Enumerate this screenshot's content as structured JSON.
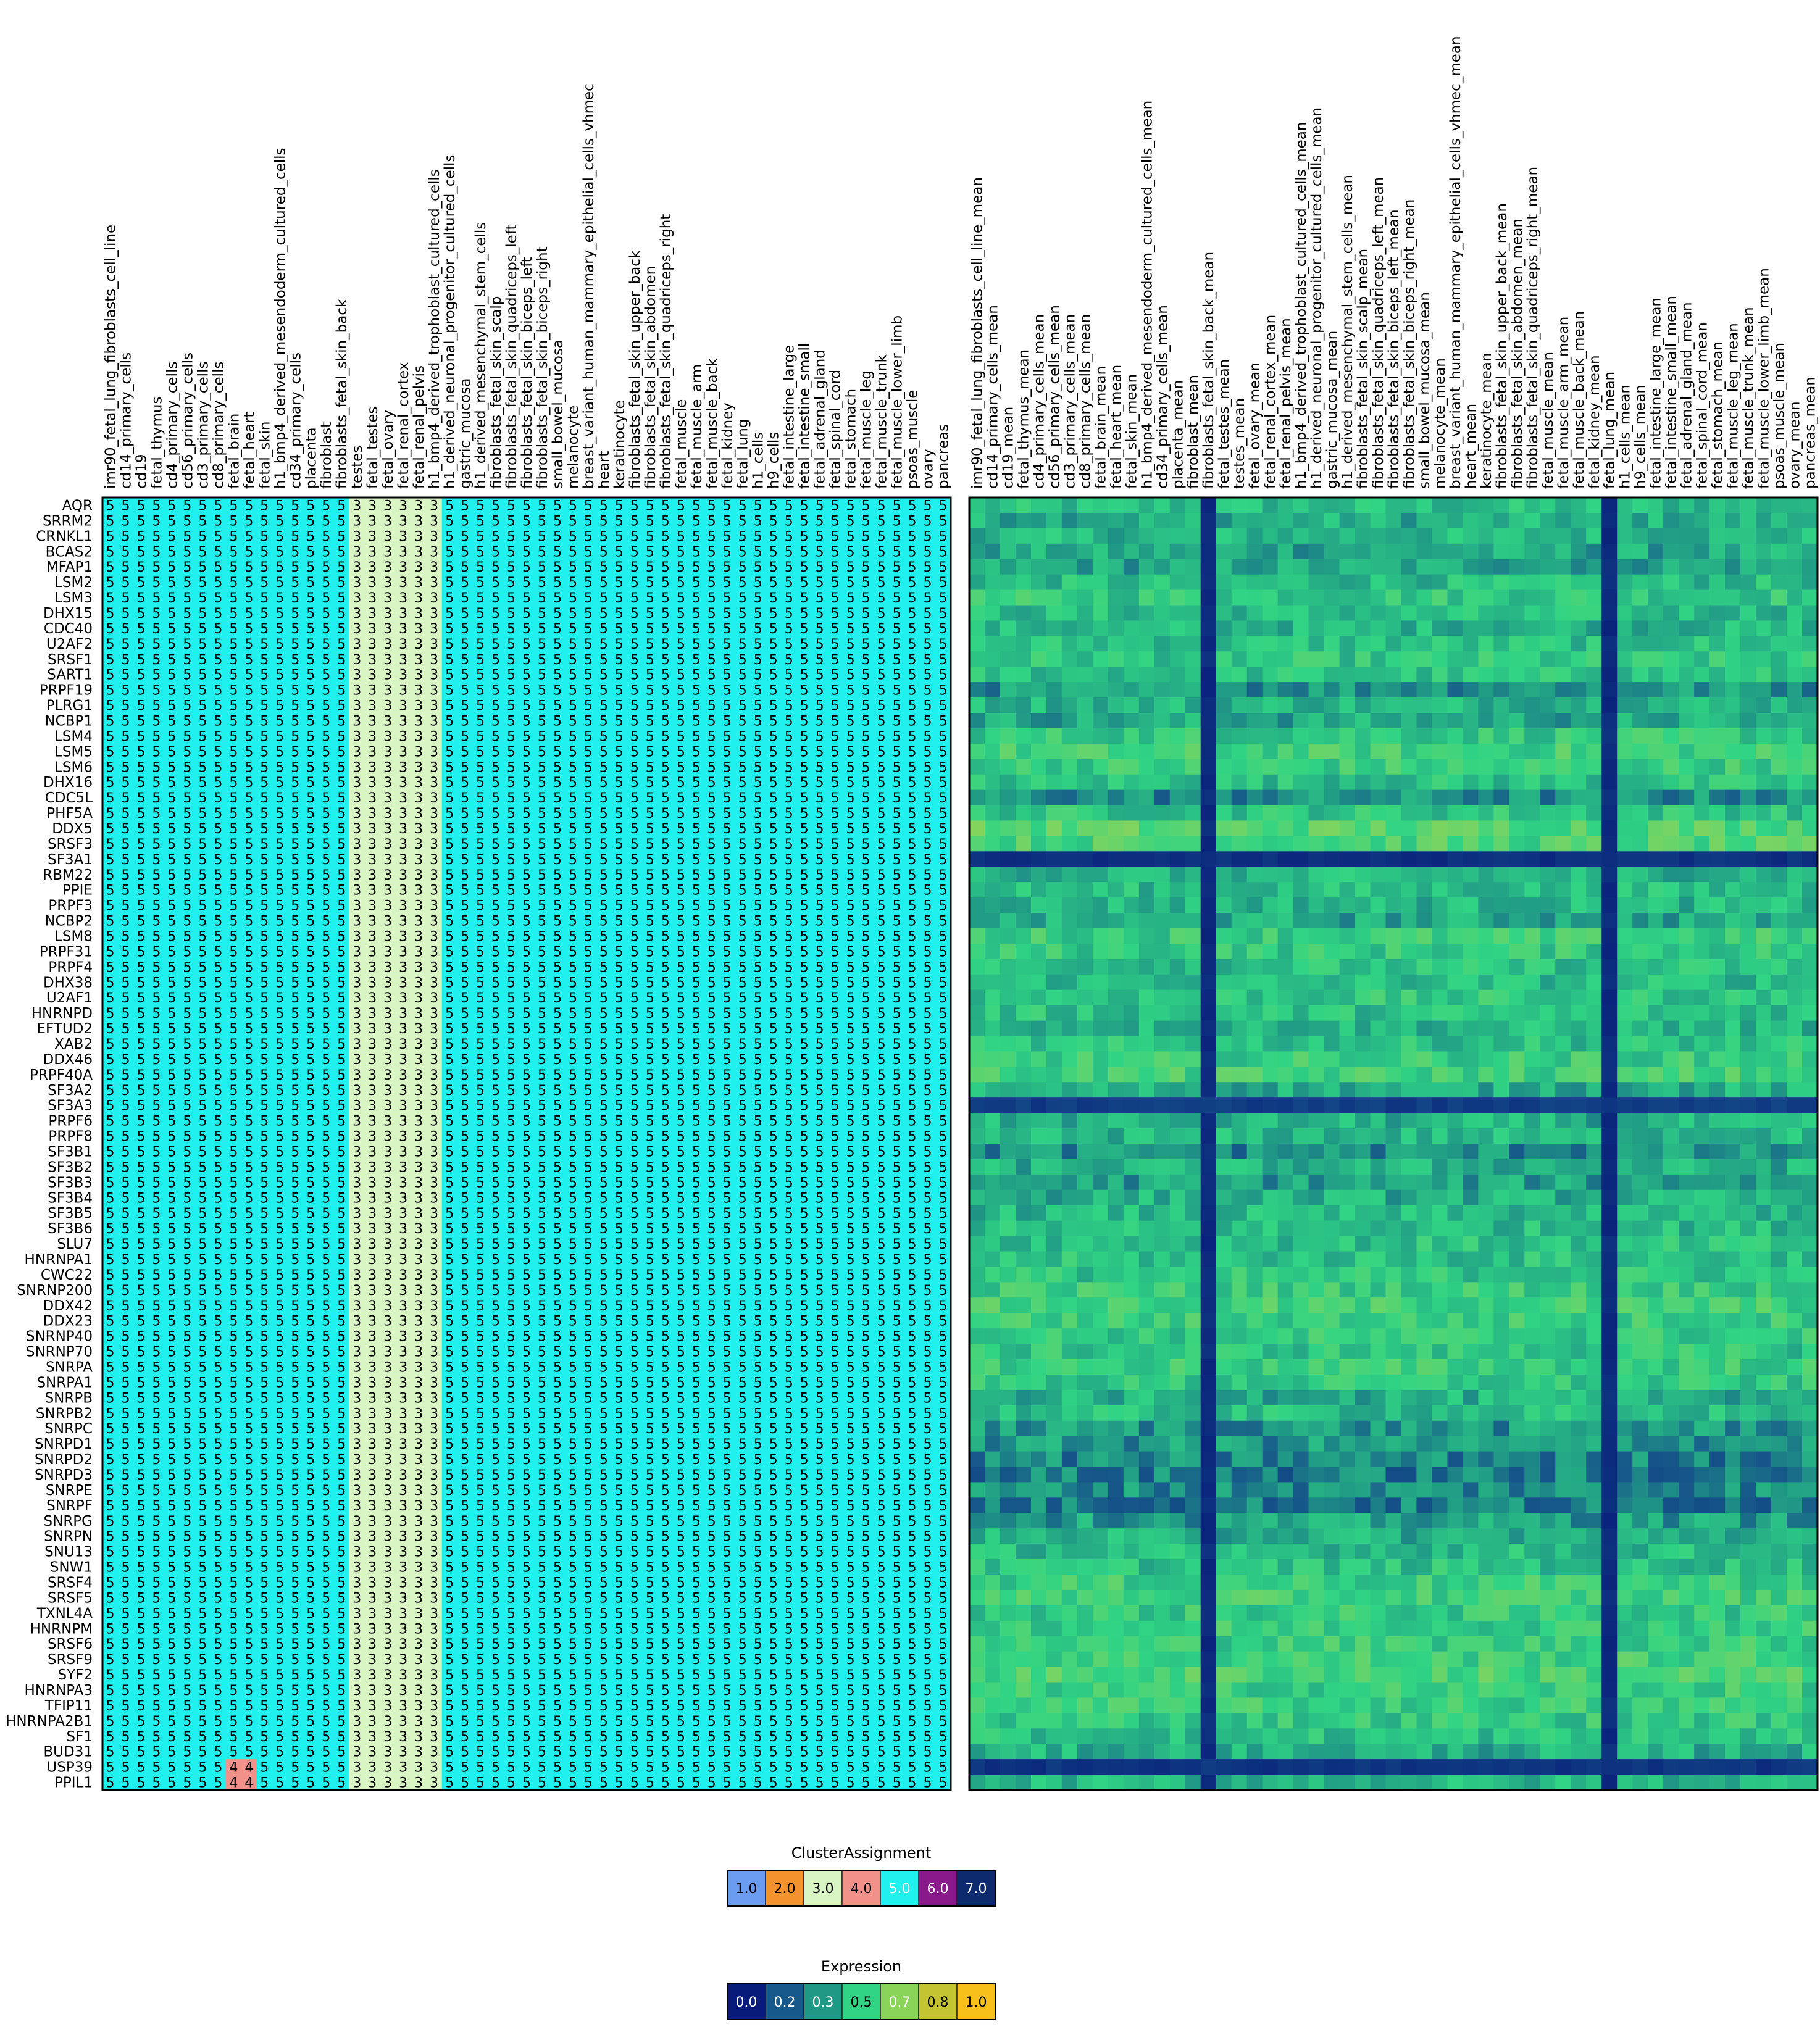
{
  "chart_data": [
    {
      "type": "heatmap",
      "name": "cluster-assignment-grid",
      "cell_value_encoding": "run-length [value, count] per gene row, 55 columns",
      "columns": [
        "imr90_fetal_lung_fibroblasts_cell_line",
        "cd14_primary_cells",
        "cd19",
        "fetal_thymus",
        "cd4_primary_cells",
        "cd56_primary_cells",
        "cd3_primary_cells",
        "cd8_primary_cells",
        "fetal_brain",
        "fetal_heart",
        "fetal_skin",
        "h1_bmp4_derived_mesendoderm_cultured_cells",
        "cd34_primary_cells",
        "placenta",
        "fibroblast",
        "fibroblasts_fetal_skin_back",
        "testes",
        "fetal_testes",
        "fetal_ovary",
        "fetal_renal_cortex",
        "fetal_renal_pelvis",
        "h1_bmp4_derived_trophoblast_cultured_cells",
        "h1_derived_neuronal_progenitor_cultured_cells",
        "gastric_mucosa",
        "h1_derived_mesenchymal_stem_cells",
        "fibroblasts_fetal_skin_scalp",
        "fibroblasts_fetal_skin_quadriceps_left",
        "fibroblasts_fetal_skin_biceps_left",
        "fibroblasts_fetal_skin_biceps_right",
        "small_bowel_mucosa",
        "melanocyte",
        "breast_variant_human_mammary_epithelial_cells_vhmec",
        "heart",
        "keratinocyte",
        "fibroblasts_fetal_skin_upper_back",
        "fibroblasts_fetal_skin_abdomen",
        "fibroblasts_fetal_skin_quadriceps_right",
        "fetal_muscle",
        "fetal_muscle_arm",
        "fetal_muscle_back",
        "fetal_kidney",
        "fetal_lung",
        "h1_cells",
        "h9_cells",
        "fetal_intestine_large",
        "fetal_intestine_small",
        "fetal_adrenal_gland",
        "fetal_spinal_cord",
        "fetal_stomach",
        "fetal_muscle_leg",
        "fetal_muscle_trunk",
        "fetal_muscle_lower_limb",
        "psoas_muscle",
        "ovary",
        "pancreas"
      ],
      "rows": [
        "AQR",
        "SRRM2",
        "CRNKL1",
        "BCAS2",
        "MFAP1",
        "LSM2",
        "LSM3",
        "DHX15",
        "CDC40",
        "U2AF2",
        "SRSF1",
        "SART1",
        "PRPF19",
        "PLRG1",
        "NCBP1",
        "LSM4",
        "LSM5",
        "LSM6",
        "DHX16",
        "CDC5L",
        "PHF5A",
        "DDX5",
        "SRSF3",
        "SF3A1",
        "RBM22",
        "PPIE",
        "PRPF3",
        "NCBP2",
        "LSM8",
        "PRPF31",
        "PRPF4",
        "DHX38",
        "U2AF1",
        "HNRNPD",
        "EFTUD2",
        "XAB2",
        "DDX46",
        "PRPF40A",
        "SF3A2",
        "SF3A3",
        "PRPF6",
        "PRPF8",
        "SF3B1",
        "SF3B2",
        "SF3B3",
        "SF3B4",
        "SF3B5",
        "SF3B6",
        "SLU7",
        "HNRNPA1",
        "CWC22",
        "SNRNP200",
        "DDX42",
        "DDX23",
        "SNRNP40",
        "SNRNP70",
        "SNRPA",
        "SNRPA1",
        "SNRPB",
        "SNRPB2",
        "SNRPC",
        "SNRPD1",
        "SNRPD2",
        "SNRPD3",
        "SNRPE",
        "SNRPF",
        "SNRPG",
        "SNRPN",
        "SNU13",
        "SNW1",
        "SRSF4",
        "SRSF5",
        "TXNL4A",
        "HNRNPM",
        "SRSF6",
        "SRSF9",
        "SYF2",
        "HNRNPA3",
        "TFIP11",
        "HNRNPA2B1",
        "SF1",
        "BUD31",
        "USP39",
        "PPIL1"
      ],
      "default_row": [
        [
          5,
          16
        ],
        [
          3,
          6
        ],
        [
          5,
          33
        ]
      ],
      "row_overrides": {
        "USP39": [
          [
            5,
            8
          ],
          [
            4,
            2
          ],
          [
            5,
            6
          ],
          [
            3,
            6
          ],
          [
            5,
            33
          ]
        ],
        "PPIL1": [
          [
            5,
            8
          ],
          [
            4,
            2
          ],
          [
            5,
            6
          ],
          [
            3,
            6
          ],
          [
            5,
            33
          ]
        ]
      }
    },
    {
      "type": "heatmap",
      "name": "expression-heatmap",
      "columns": [
        "imr90_fetal_lung_fibroblasts_cell_line_mean",
        "cd14_primary_cells_mean",
        "cd19_mean",
        "fetal_thymus_mean",
        "cd4_primary_cells_mean",
        "cd56_primary_cells_mean",
        "cd3_primary_cells_mean",
        "cd8_primary_cells_mean",
        "fetal_brain_mean",
        "fetal_heart_mean",
        "fetal_skin_mean",
        "h1_bmp4_derived_mesendoderm_cultured_cells_mean",
        "cd34_primary_cells_mean",
        "placenta_mean",
        "fibroblast_mean",
        "fibroblasts_fetal_skin_back_mean",
        "fetal_testes_mean",
        "testes_mean",
        "fetal_ovary_mean",
        "fetal_renal_cortex_mean",
        "fetal_renal_pelvis_mean",
        "h1_bmp4_derived_trophoblast_cultured_cells_mean",
        "h1_derived_neuronal_progenitor_cultured_cells_mean",
        "gastric_mucosa_mean",
        "h1_derived_mesenchymal_stem_cells_mean",
        "fibroblasts_fetal_skin_scalp_mean",
        "fibroblasts_fetal_skin_quadriceps_left_mean",
        "fibroblasts_fetal_skin_biceps_left_mean",
        "fibroblasts_fetal_skin_biceps_right_mean",
        "small_bowel_mucosa_mean",
        "melanocyte_mean",
        "breast_variant_human_mammary_epithelial_cells_vhmec_mean",
        "heart_mean",
        "keratinocyte_mean",
        "fibroblasts_fetal_skin_upper_back_mean",
        "fibroblasts_fetal_skin_abdomen_mean",
        "fibroblasts_fetal_skin_quadriceps_right_mean",
        "fetal_muscle_mean",
        "fetal_muscle_arm_mean",
        "fetal_muscle_back_mean",
        "fetal_kidney_mean",
        "fetal_lung_mean",
        "h1_cells_mean",
        "h9_cells_mean",
        "fetal_intestine_large_mean",
        "fetal_intestine_small_mean",
        "fetal_adrenal_gland_mean",
        "fetal_spinal_cord_mean",
        "fetal_stomach_mean",
        "fetal_muscle_leg_mean",
        "fetal_muscle_trunk_mean",
        "fetal_muscle_lower_limb_mean",
        "psoas_muscle_mean",
        "ovary_mean",
        "pancreas_mean"
      ],
      "rows_same_as_cluster_grid": true,
      "value_range": [
        0,
        1
      ],
      "approximate_row_levels": [
        0.42,
        0.38,
        0.4,
        0.36,
        0.36,
        0.42,
        0.48,
        0.42,
        0.4,
        0.44,
        0.46,
        0.44,
        0.32,
        0.4,
        0.36,
        0.48,
        0.52,
        0.5,
        0.44,
        0.3,
        0.46,
        0.58,
        0.55,
        0.04,
        0.4,
        0.42,
        0.4,
        0.36,
        0.5,
        0.48,
        0.44,
        0.42,
        0.46,
        0.44,
        0.4,
        0.44,
        0.5,
        0.52,
        0.38,
        0.08,
        0.38,
        0.4,
        0.3,
        0.38,
        0.34,
        0.38,
        0.4,
        0.42,
        0.44,
        0.44,
        0.46,
        0.5,
        0.52,
        0.5,
        0.48,
        0.46,
        0.5,
        0.46,
        0.38,
        0.42,
        0.32,
        0.32,
        0.28,
        0.26,
        0.3,
        0.26,
        0.34,
        0.38,
        0.42,
        0.44,
        0.5,
        0.52,
        0.48,
        0.5,
        0.5,
        0.52,
        0.55,
        0.5,
        0.5,
        0.48,
        0.44,
        0.38,
        0.05,
        0.4
      ],
      "approximate_dark_columns": [
        "fibroblasts_fetal_skin_back_mean",
        "fetal_lung_mean"
      ]
    }
  ],
  "legends": {
    "cluster": {
      "title": "ClusterAssignment",
      "items": [
        {
          "label": "1.0",
          "color": "#6a9cf2"
        },
        {
          "label": "2.0",
          "color": "#f4922e"
        },
        {
          "label": "3.0",
          "color": "#d9f5c4"
        },
        {
          "label": "4.0",
          "color": "#f2908a"
        },
        {
          "label": "5.0",
          "color": "#20f0ee"
        },
        {
          "label": "6.0",
          "color": "#8a1a8c"
        },
        {
          "label": "7.0",
          "color": "#0d2a6e"
        }
      ]
    },
    "expression": {
      "title": "Expression",
      "items": [
        {
          "label": "0.0",
          "color": "#081a7a"
        },
        {
          "label": "0.2",
          "color": "#17598a"
        },
        {
          "label": "0.3",
          "color": "#209886"
        },
        {
          "label": "0.5",
          "color": "#30d484"
        },
        {
          "label": "0.7",
          "color": "#8ad45a"
        },
        {
          "label": "0.8",
          "color": "#c4c432"
        },
        {
          "label": "1.0",
          "color": "#f7c01a"
        }
      ]
    }
  }
}
